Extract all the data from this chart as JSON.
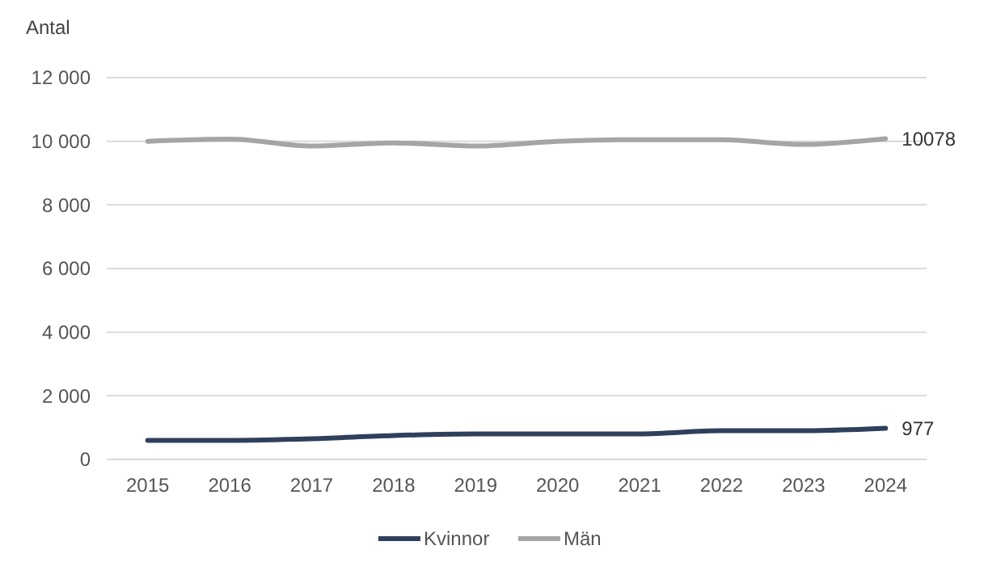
{
  "chart_data": {
    "type": "line",
    "ylabel": "Antal",
    "categories": [
      "2015",
      "2016",
      "2017",
      "2018",
      "2019",
      "2020",
      "2021",
      "2022",
      "2023",
      "2024"
    ],
    "series": [
      {
        "name": "Kvinnor",
        "color": "#303f5c",
        "values": [
          600,
          600,
          650,
          750,
          800,
          800,
          800,
          900,
          900,
          977
        ],
        "value_labels": [
          null,
          null,
          null,
          null,
          null,
          null,
          null,
          null,
          null,
          "977"
        ]
      },
      {
        "name": "Män",
        "color": "#a5a5a5",
        "values": [
          10000,
          10070,
          9850,
          9950,
          9850,
          10000,
          10050,
          10050,
          9900,
          10078
        ],
        "value_labels": [
          null,
          null,
          null,
          null,
          null,
          null,
          null,
          null,
          null,
          "10078"
        ]
      }
    ],
    "ylim": [
      0,
      12000
    ],
    "yticks": [
      0,
      {
        "value": 2000,
        "label": "2 000"
      },
      {
        "value": 4000,
        "label": "4 000"
      },
      {
        "value": 6000,
        "label": "6 000"
      },
      {
        "value": 8000,
        "label": "8 000"
      },
      {
        "value": 10000,
        "label": "10 000"
      },
      {
        "value": 12000,
        "label": "12 000"
      }
    ],
    "grid": "y",
    "legend": "bottom",
    "marker": "none",
    "line_style": "solid"
  }
}
